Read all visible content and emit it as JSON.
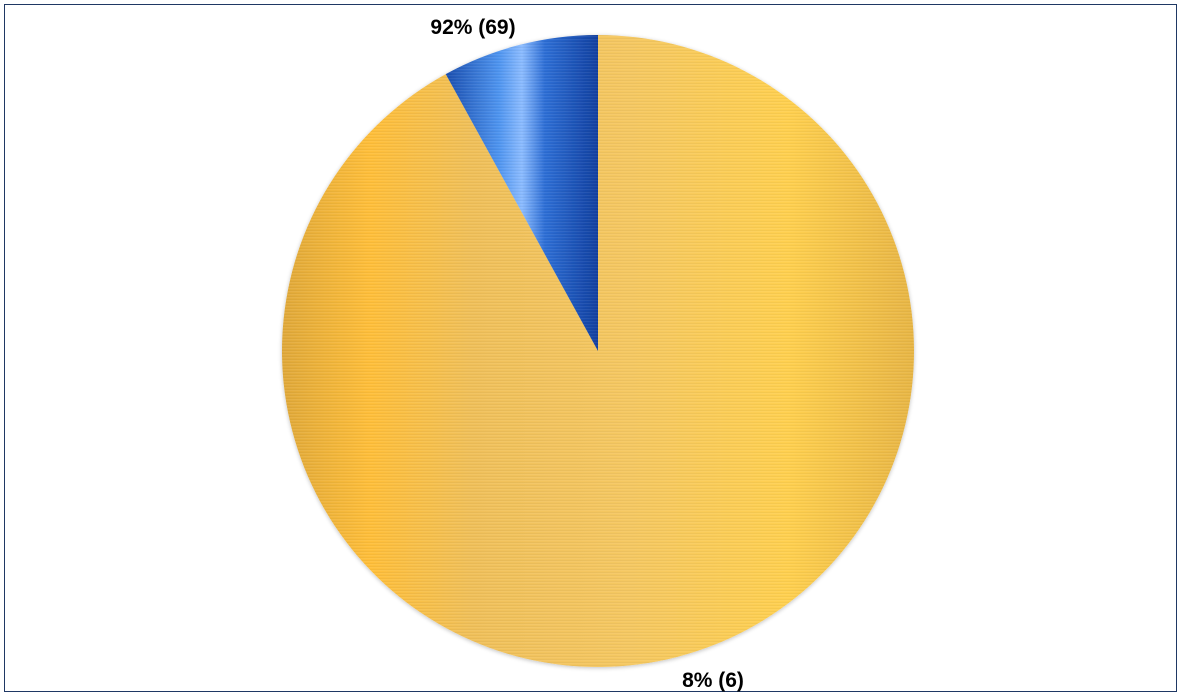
{
  "chart_data": {
    "type": "pie",
    "slices": [
      {
        "value": 69,
        "percent": 92,
        "label": "92% (69)",
        "color": "#f2c04d"
      },
      {
        "value": 6,
        "percent": 8,
        "label": "8% (6)",
        "color": "#1a5fc8"
      }
    ],
    "start_angle_deg": 0,
    "direction": "clockwise",
    "legend": "none"
  }
}
